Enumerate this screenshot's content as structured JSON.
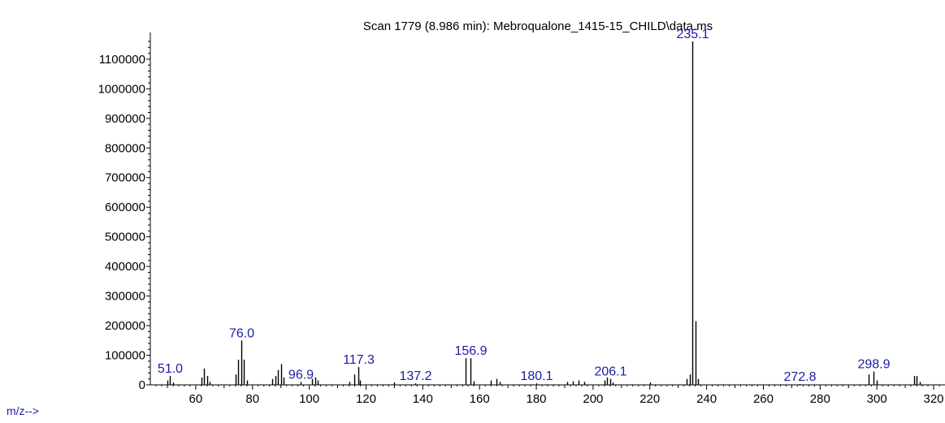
{
  "chart_data": {
    "type": "bar",
    "title": "Scan 1779 (8.986 min): Mebroqualone_1415-15_CHILD\\data.ms",
    "xlabel": "m/z-->",
    "ylabel": "",
    "xlim": [
      44,
      324
    ],
    "ylim": [
      0,
      1160000
    ],
    "grid": false,
    "x_ticks": [
      60,
      80,
      100,
      120,
      140,
      160,
      180,
      200,
      220,
      240,
      260,
      280,
      300,
      320
    ],
    "x_tick_labels": [
      "60",
      "80",
      "100",
      "120",
      "140",
      "160",
      "180",
      "200",
      "220",
      "240",
      "260",
      "280",
      "300",
      "320"
    ],
    "y_ticks": [
      0,
      100000,
      200000,
      300000,
      400000,
      500000,
      600000,
      700000,
      800000,
      900000,
      1000000,
      1100000
    ],
    "y_tick_labels": [
      "0",
      "100000",
      "200000",
      "300000",
      "400000",
      "500000",
      "600000",
      "700000",
      "800000",
      "900000",
      "1000000",
      "1100000"
    ],
    "peaks": [
      {
        "mz": 50.0,
        "intensity": 15000
      },
      {
        "mz": 51.0,
        "intensity": 30000,
        "label": "51.0"
      },
      {
        "mz": 52.0,
        "intensity": 8000
      },
      {
        "mz": 62.0,
        "intensity": 25000
      },
      {
        "mz": 63.0,
        "intensity": 55000
      },
      {
        "mz": 64.0,
        "intensity": 30000
      },
      {
        "mz": 65.0,
        "intensity": 10000
      },
      {
        "mz": 74.0,
        "intensity": 35000
      },
      {
        "mz": 75.0,
        "intensity": 85000
      },
      {
        "mz": 76.0,
        "intensity": 150000,
        "label": "76.0"
      },
      {
        "mz": 77.0,
        "intensity": 85000
      },
      {
        "mz": 78.0,
        "intensity": 15000
      },
      {
        "mz": 87.0,
        "intensity": 20000
      },
      {
        "mz": 88.0,
        "intensity": 30000
      },
      {
        "mz": 89.0,
        "intensity": 50000
      },
      {
        "mz": 90.0,
        "intensity": 70000
      },
      {
        "mz": 91.0,
        "intensity": 25000
      },
      {
        "mz": 96.9,
        "intensity": 10000,
        "label": "96.9"
      },
      {
        "mz": 101.0,
        "intensity": 20000
      },
      {
        "mz": 102.0,
        "intensity": 25000
      },
      {
        "mz": 103.0,
        "intensity": 15000
      },
      {
        "mz": 114.0,
        "intensity": 10000
      },
      {
        "mz": 116.0,
        "intensity": 35000
      },
      {
        "mz": 117.3,
        "intensity": 60000,
        "label": "117.3"
      },
      {
        "mz": 118.0,
        "intensity": 15000
      },
      {
        "mz": 130.0,
        "intensity": 8000
      },
      {
        "mz": 137.2,
        "intensity": 5000,
        "label": "137.2"
      },
      {
        "mz": 155.0,
        "intensity": 90000
      },
      {
        "mz": 156.9,
        "intensity": 90000,
        "label": "156.9"
      },
      {
        "mz": 158.0,
        "intensity": 12000
      },
      {
        "mz": 164.0,
        "intensity": 15000
      },
      {
        "mz": 166.0,
        "intensity": 20000
      },
      {
        "mz": 167.0,
        "intensity": 10000
      },
      {
        "mz": 180.1,
        "intensity": 5000,
        "label": "180.1"
      },
      {
        "mz": 191.0,
        "intensity": 10000
      },
      {
        "mz": 193.0,
        "intensity": 12000
      },
      {
        "mz": 195.0,
        "intensity": 15000
      },
      {
        "mz": 197.0,
        "intensity": 10000
      },
      {
        "mz": 204.0,
        "intensity": 15000
      },
      {
        "mz": 205.0,
        "intensity": 25000
      },
      {
        "mz": 206.1,
        "intensity": 20000,
        "label": "206.1"
      },
      {
        "mz": 207.0,
        "intensity": 8000
      },
      {
        "mz": 220.0,
        "intensity": 8000
      },
      {
        "mz": 233.0,
        "intensity": 20000
      },
      {
        "mz": 234.0,
        "intensity": 35000
      },
      {
        "mz": 235.1,
        "intensity": 1160000,
        "label": "235.1"
      },
      {
        "mz": 236.0,
        "intensity": 215000
      },
      {
        "mz": 237.0,
        "intensity": 20000
      },
      {
        "mz": 272.8,
        "intensity": 3000,
        "label": "272.8"
      },
      {
        "mz": 297.0,
        "intensity": 35000
      },
      {
        "mz": 298.9,
        "intensity": 45000,
        "label": "298.9"
      },
      {
        "mz": 300.0,
        "intensity": 15000
      },
      {
        "mz": 313.0,
        "intensity": 30000
      },
      {
        "mz": 314.0,
        "intensity": 30000
      },
      {
        "mz": 315.0,
        "intensity": 10000
      }
    ]
  }
}
